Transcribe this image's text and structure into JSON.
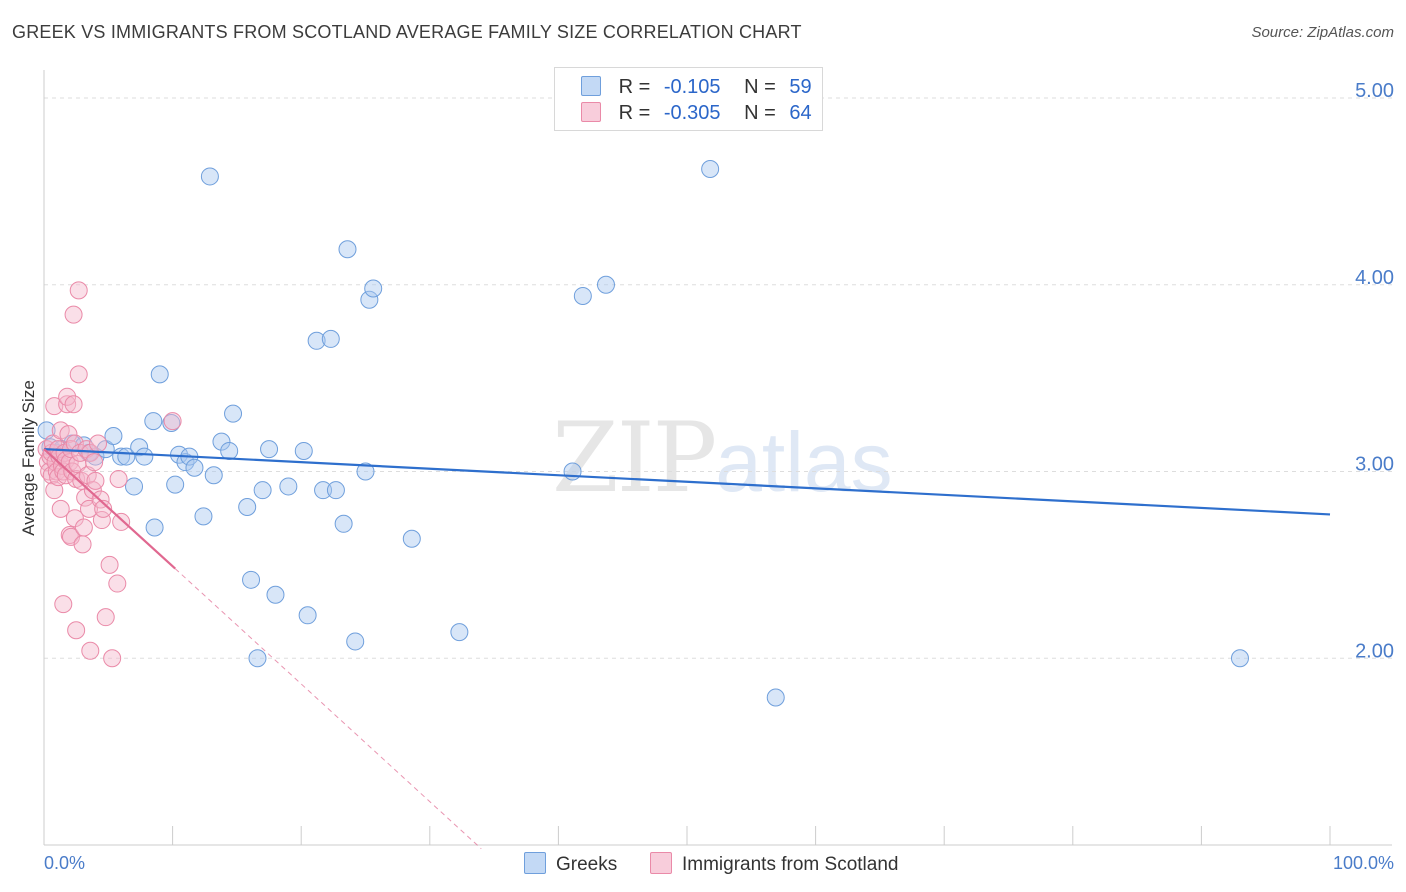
{
  "header": {
    "title": "GREEK VS IMMIGRANTS FROM SCOTLAND AVERAGE FAMILY SIZE CORRELATION CHART",
    "source": "Source: ZipAtlas.com"
  },
  "watermark": {
    "zip": "ZIP",
    "atlas": "atlas"
  },
  "legend_top": {
    "rows": [
      {
        "r_label": "R =",
        "r_value": "-0.105",
        "n_label": "N =",
        "n_value": "59"
      },
      {
        "r_label": "R =",
        "r_value": "-0.305",
        "n_label": "N =",
        "n_value": "64"
      }
    ]
  },
  "legend_bottom": {
    "items": [
      "Greeks",
      "Immigrants from Scotland"
    ]
  },
  "colors": {
    "blue_fill": "#a8c8f0",
    "blue_stroke": "#6f9fdc",
    "blue_line": "#2e6fcd",
    "pink_fill": "#f5b8cb",
    "pink_stroke": "#ea8aa8",
    "pink_line": "#e06890",
    "grid": "#dddddd",
    "axis": "#cccccc"
  },
  "chart_data": {
    "type": "scatter",
    "title": "GREEK VS IMMIGRANTS FROM SCOTLAND AVERAGE FAMILY SIZE CORRELATION CHART",
    "xlabel": "",
    "ylabel": "Average Family Size",
    "xlim": [
      0,
      100
    ],
    "ylim": [
      1.0,
      5.15
    ],
    "x_tick_labels": [
      "0.0%",
      "100.0%"
    ],
    "y_ticks": [
      2.0,
      3.0,
      4.0,
      5.0
    ],
    "y_tick_labels": [
      "2.00",
      "3.00",
      "4.00",
      "5.00"
    ],
    "series": [
      {
        "name": "Greeks",
        "r": -0.105,
        "n": 59,
        "trend": {
          "x": [
            0,
            100
          ],
          "y": [
            3.12,
            2.77
          ]
        },
        "points": [
          [
            0.2,
            3.22
          ],
          [
            0.5,
            3.13
          ],
          [
            1,
            3.1
          ],
          [
            1.4,
            3.12
          ],
          [
            2.2,
            3.15
          ],
          [
            3.1,
            3.14
          ],
          [
            3.5,
            3.1
          ],
          [
            4,
            3.08
          ],
          [
            4.8,
            3.12
          ],
          [
            5.4,
            3.19
          ],
          [
            6,
            3.08
          ],
          [
            6.4,
            3.08
          ],
          [
            7,
            2.92
          ],
          [
            7.4,
            3.13
          ],
          [
            7.8,
            3.08
          ],
          [
            8.5,
            3.27
          ],
          [
            8.6,
            2.7
          ],
          [
            9,
            3.52
          ],
          [
            9.9,
            3.26
          ],
          [
            10.2,
            2.93
          ],
          [
            10.5,
            3.09
          ],
          [
            11,
            3.05
          ],
          [
            11.3,
            3.08
          ],
          [
            11.7,
            3.02
          ],
          [
            12.4,
            2.76
          ],
          [
            12.9,
            4.58
          ],
          [
            13.2,
            2.98
          ],
          [
            13.8,
            3.16
          ],
          [
            14.4,
            3.11
          ],
          [
            14.7,
            3.31
          ],
          [
            15.8,
            2.81
          ],
          [
            16.1,
            2.42
          ],
          [
            16.6,
            2.0
          ],
          [
            17,
            2.9
          ],
          [
            17.5,
            3.12
          ],
          [
            18,
            2.34
          ],
          [
            19,
            2.92
          ],
          [
            20.2,
            3.11
          ],
          [
            20.5,
            2.23
          ],
          [
            21.2,
            3.7
          ],
          [
            21.7,
            2.9
          ],
          [
            22.3,
            3.71
          ],
          [
            22.7,
            2.9
          ],
          [
            23.3,
            2.72
          ],
          [
            23.6,
            4.19
          ],
          [
            24.2,
            2.09
          ],
          [
            25,
            3.0
          ],
          [
            25.3,
            3.92
          ],
          [
            25.6,
            3.98
          ],
          [
            28.6,
            2.64
          ],
          [
            32.3,
            2.14
          ],
          [
            41.1,
            3.0
          ],
          [
            41.9,
            3.94
          ],
          [
            43.7,
            4.0
          ],
          [
            51.8,
            4.62
          ],
          [
            56.9,
            1.79
          ],
          [
            93,
            2.0
          ]
        ]
      },
      {
        "name": "Immigrants from Scotland",
        "r": -0.305,
        "n": 64,
        "trend": {
          "x": [
            0,
            10.2
          ],
          "y": [
            3.12,
            2.48
          ]
        },
        "trend_extension": {
          "x": [
            10.2,
            34
          ],
          "y": [
            2.48,
            0.98
          ]
        },
        "points": [
          [
            0.2,
            3.12
          ],
          [
            0.3,
            3.05
          ],
          [
            0.4,
            3.0
          ],
          [
            0.5,
            3.08
          ],
          [
            0.6,
            2.98
          ],
          [
            0.6,
            3.1
          ],
          [
            0.7,
            3.15
          ],
          [
            0.8,
            3.35
          ],
          [
            0.8,
            2.9
          ],
          [
            0.9,
            3.05
          ],
          [
            1,
            3.0
          ],
          [
            1.1,
            3.12
          ],
          [
            1.1,
            2.97
          ],
          [
            1.2,
            3.08
          ],
          [
            1.3,
            3.22
          ],
          [
            1.3,
            2.8
          ],
          [
            1.4,
            3.03
          ],
          [
            1.5,
            3.0
          ],
          [
            1.5,
            2.29
          ],
          [
            1.6,
            3.1
          ],
          [
            1.7,
            3.06
          ],
          [
            1.7,
            2.98
          ],
          [
            1.8,
            3.36
          ],
          [
            1.8,
            3.4
          ],
          [
            1.9,
            3.2
          ],
          [
            2,
            3.05
          ],
          [
            2,
            2.66
          ],
          [
            2.1,
            3.12
          ],
          [
            2.1,
            2.65
          ],
          [
            2.2,
            3.0
          ],
          [
            2.3,
            3.36
          ],
          [
            2.3,
            3.84
          ],
          [
            2.4,
            3.15
          ],
          [
            2.4,
            2.75
          ],
          [
            2.5,
            2.96
          ],
          [
            2.5,
            2.15
          ],
          [
            2.6,
            3.04
          ],
          [
            2.7,
            3.97
          ],
          [
            2.7,
            3.52
          ],
          [
            2.8,
            3.1
          ],
          [
            2.9,
            2.95
          ],
          [
            3,
            2.61
          ],
          [
            3.1,
            2.7
          ],
          [
            3.2,
            2.86
          ],
          [
            3.3,
            3.12
          ],
          [
            3.4,
            2.98
          ],
          [
            3.5,
            2.8
          ],
          [
            3.6,
            3.1
          ],
          [
            3.6,
            2.04
          ],
          [
            3.8,
            2.9
          ],
          [
            3.9,
            3.05
          ],
          [
            4,
            2.95
          ],
          [
            4.2,
            3.15
          ],
          [
            4.4,
            2.85
          ],
          [
            4.5,
            2.74
          ],
          [
            4.6,
            2.8
          ],
          [
            4.8,
            2.22
          ],
          [
            5.1,
            2.5
          ],
          [
            5.3,
            2.0
          ],
          [
            5.7,
            2.4
          ],
          [
            5.8,
            2.96
          ],
          [
            6.0,
            2.73
          ],
          [
            10.0,
            3.27
          ]
        ]
      }
    ]
  }
}
